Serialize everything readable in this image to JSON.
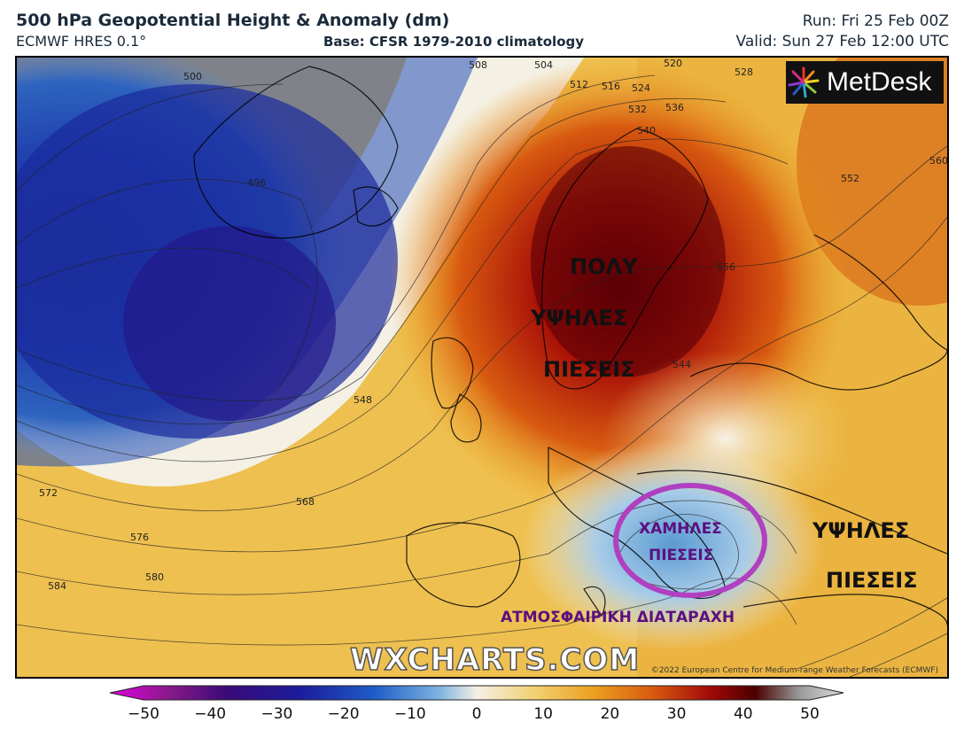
{
  "header": {
    "title": "500 hPa Geopotential Height & Anomaly (dm)",
    "model": "ECMWF HRES 0.1°",
    "base": "Base: CFSR 1979-2010 climatology",
    "run": "Run: Fri 25 Feb 00Z",
    "valid": "Valid: Sun 27 Feb 12:00 UTC"
  },
  "logo": {
    "text": "MetDesk"
  },
  "watermark": "WXCHARTS.COM",
  "copyright": "©2022 European Centre for Medium-range Weather Forecasts (ECMWF)",
  "annotations": {
    "very_high_1": "ΠΟΛΥ",
    "very_high_2": "ΥΨΗΛΕΣ",
    "very_high_3": "ΠΙΕΣΕΙΣ",
    "low_1": "ΧΑΜΗΛΕΣ",
    "low_2": "ΠΙΕΣΕΙΣ",
    "high_1": "ΥΨΗΛΕΣ",
    "high_2": "ΠΙΕΣΕΙΣ",
    "disturbance": "ΑΤΜΟΣΦΑΙΡΙΚΗ ΔΙΑΤΑΡΑΧΗ"
  },
  "contour_labels": [
    "500",
    "504",
    "508",
    "512",
    "516",
    "520",
    "524",
    "528",
    "532",
    "536",
    "540",
    "544",
    "548",
    "552",
    "556",
    "560",
    "568",
    "572",
    "576",
    "580",
    "584",
    "496"
  ],
  "colorbar": {
    "ticks": [
      "−50",
      "−40",
      "−30",
      "−20",
      "−10",
      "0",
      "10",
      "20",
      "30",
      "40",
      "50"
    ],
    "colors": [
      "#e000e0",
      "#8a1a8a",
      "#3a0a78",
      "#1c1c9c",
      "#1e5cc8",
      "#7fb4e0",
      "#f4f0e4",
      "#f2d070",
      "#eca020",
      "#d85a10",
      "#a00808",
      "#4a0000",
      "#9a9a9a",
      "#dcdcdc"
    ]
  },
  "map_colors": {
    "ocean_low": "#1a2aa0",
    "anomaly_neg": "#6aa6da",
    "neutral": "#f4f0e0",
    "warm": "#eab040",
    "hot": "#d04010",
    "very_hot": "#7a0a08",
    "circle": "#b040c0",
    "greek_purple": "#5a1080",
    "greek_black": "#111111"
  }
}
